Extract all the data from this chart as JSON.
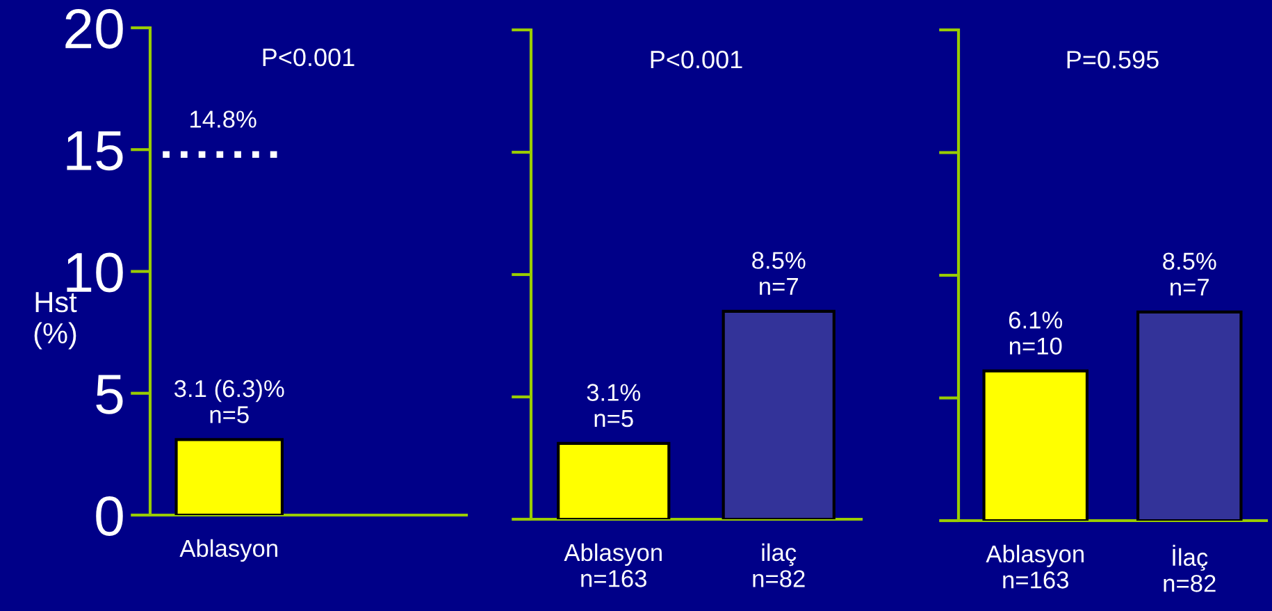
{
  "chart_data": [
    {
      "type": "bar",
      "ylabel": "Hst\n(%)",
      "categories": [
        "Ablasyon",
        null
      ],
      "ylim": [
        0,
        20
      ],
      "yticks": [
        0,
        5,
        10,
        15,
        20
      ],
      "series": [
        {
          "color": "#ffff00",
          "values": [
            3.1,
            null
          ],
          "value_labels": [
            "3.1 (6.3)%\nn=5",
            null
          ]
        }
      ],
      "ref_lines": [
        {
          "axis": "y",
          "value": 14.8,
          "label": "14.8%",
          "color": "#ffffff",
          "line_style": "dotted"
        }
      ],
      "annotations": [
        "P<0.001"
      ],
      "grid": false,
      "legend": false
    },
    {
      "type": "bar",
      "categories": [
        "Ablasyon\nn=163",
        "ilaç\nn=82"
      ],
      "ylim": [
        0,
        20
      ],
      "yticks": [
        {
          "value": 0,
          "label": null
        },
        {
          "value": 5,
          "label": null
        },
        {
          "value": 10,
          "label": null
        },
        {
          "value": 15,
          "label": null
        },
        {
          "value": 20,
          "label": null
        }
      ],
      "tick_labels": "x",
      "series": [
        {
          "colors": [
            "#ffff00",
            "#333399"
          ],
          "values": [
            3.1,
            8.5
          ],
          "value_labels": [
            "3.1%\nn=5",
            "8.5%\nn=7"
          ]
        }
      ],
      "annotations": [
        "P<0.001"
      ],
      "grid": false,
      "legend": false
    },
    {
      "type": "bar",
      "categories": [
        "Ablasyon\nn=163",
        "İlaç\nn=82"
      ],
      "ylim": [
        0,
        20
      ],
      "yticks": [
        {
          "value": 0,
          "label": null
        },
        {
          "value": 5,
          "label": null
        },
        {
          "value": 10,
          "label": null
        },
        {
          "value": 15,
          "label": null
        },
        {
          "value": 20,
          "label": null
        }
      ],
      "tick_labels": "x",
      "series": [
        {
          "colors": [
            "#ffff00",
            "#333399"
          ],
          "values": [
            6.1,
            8.5
          ],
          "value_labels": [
            "6.1%\nn=10",
            "8.5%\nn=7"
          ]
        }
      ],
      "annotations": [
        "P=0.595"
      ],
      "grid": false,
      "legend": false
    }
  ]
}
